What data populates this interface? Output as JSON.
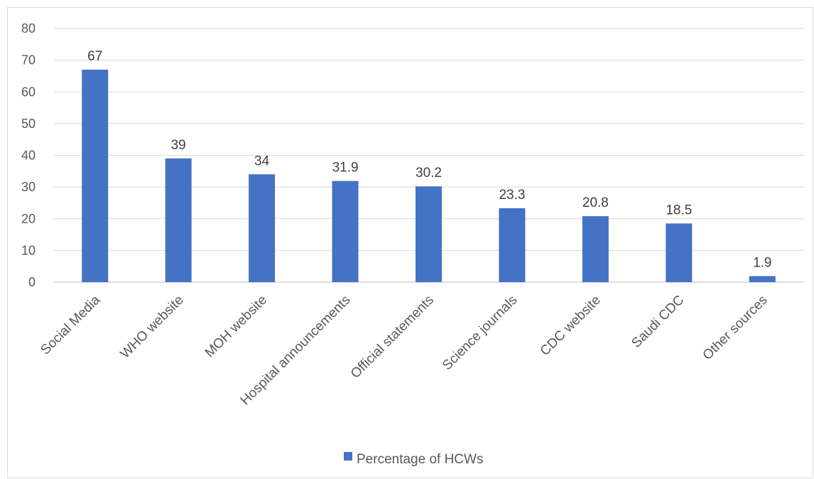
{
  "chart_data": {
    "type": "bar",
    "title": "",
    "xlabel": "",
    "ylabel": "",
    "categories": [
      "Social Media",
      "WHO website",
      "MOH website",
      "Hospital announcements",
      "Official statements",
      "Science journals",
      "CDC website",
      "Saudi CDC",
      "Other sources"
    ],
    "series": [
      {
        "name": "Percentage of HCWs",
        "values": [
          67,
          39,
          34,
          31.9,
          30.2,
          23.3,
          20.8,
          18.5,
          1.9
        ],
        "color": "#4472c4"
      }
    ],
    "ylim": [
      0,
      80
    ],
    "yticks": [
      0,
      10,
      20,
      30,
      40,
      50,
      60,
      70,
      80
    ],
    "grid": true,
    "data_labels": true,
    "legend_position": "bottom"
  }
}
